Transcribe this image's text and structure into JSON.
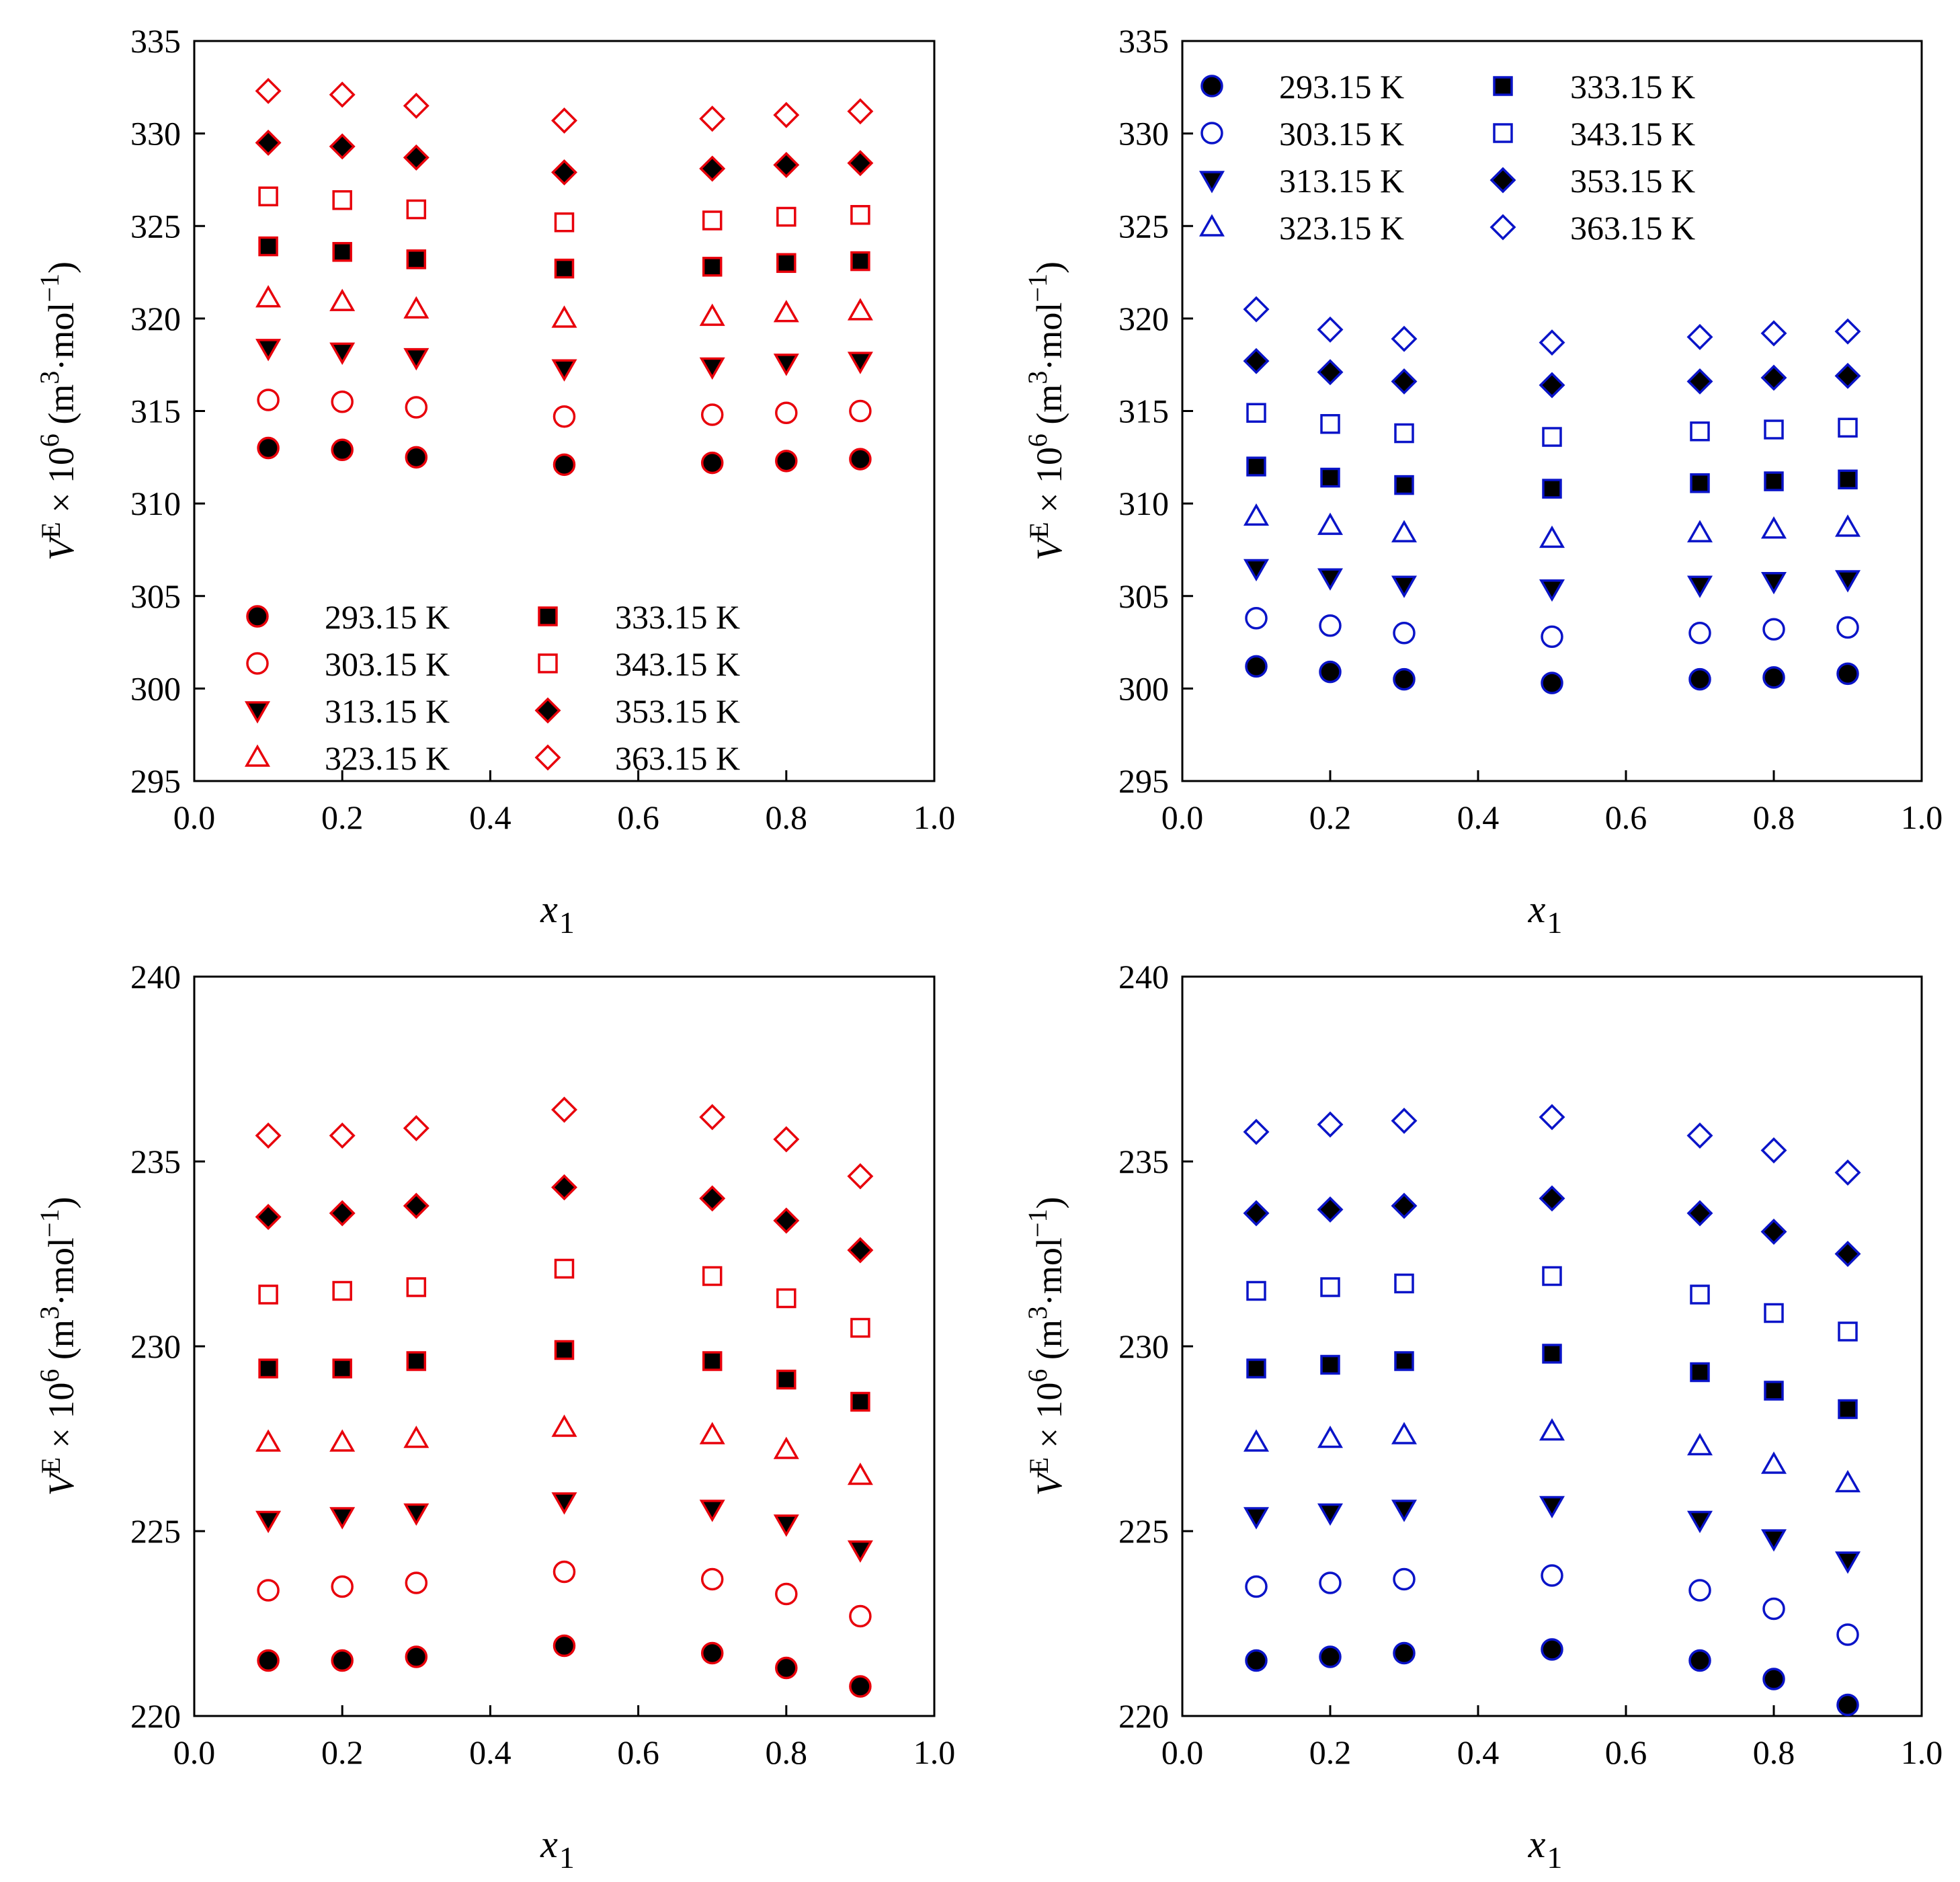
{
  "figure": {
    "colors": {
      "red": "#e8000b",
      "blue": "#0a14c8",
      "dark_fill": "#000000",
      "axis": "#000000"
    },
    "temperature_labels": [
      "293.15 K",
      "303.15 K",
      "313.15 K",
      "323.15 K",
      "333.15 K",
      "343.15 K",
      "353.15 K",
      "363.15 K"
    ],
    "marker_order": [
      "circle-filled",
      "circle-open",
      "triangle-down-filled",
      "triangle-up-open",
      "square-filled",
      "square-open",
      "diamond-filled",
      "diamond-open"
    ]
  },
  "chart_data": [
    {
      "id": "panel-top-left",
      "type": "scatter",
      "color": "red",
      "xlabel_main": "x",
      "xlabel_sub": "1",
      "ylabel": "VE × 10^6 (m^3·mol^-1)",
      "xlim": [
        0.0,
        1.0
      ],
      "ylim": [
        295,
        335
      ],
      "xticks": [
        "0.0",
        "0.2",
        "0.4",
        "0.6",
        "0.8",
        "1.0"
      ],
      "yticks": [
        "295",
        "300",
        "305",
        "310",
        "315",
        "320",
        "325",
        "330",
        "335"
      ],
      "legend": "lower-left",
      "x": [
        0.1,
        0.2,
        0.3,
        0.5,
        0.7,
        0.8,
        0.9
      ],
      "series": [
        {
          "name": "293.15 K",
          "marker": "circle-filled",
          "values": [
            313.0,
            312.9,
            312.5,
            312.1,
            312.2,
            312.3,
            312.4
          ]
        },
        {
          "name": "303.15 K",
          "marker": "circle-open",
          "values": [
            315.6,
            315.5,
            315.2,
            314.7,
            314.8,
            314.9,
            315.0
          ]
        },
        {
          "name": "313.15 K",
          "marker": "triangle-down-filled",
          "values": [
            318.4,
            318.2,
            317.9,
            317.3,
            317.4,
            317.6,
            317.7
          ]
        },
        {
          "name": "323.15 K",
          "marker": "triangle-up-open",
          "values": [
            321.1,
            320.9,
            320.5,
            320.0,
            320.1,
            320.3,
            320.4
          ]
        },
        {
          "name": "333.15 K",
          "marker": "square-filled",
          "values": [
            323.9,
            323.6,
            323.2,
            322.7,
            322.8,
            323.0,
            323.1
          ]
        },
        {
          "name": "343.15 K",
          "marker": "square-open",
          "values": [
            326.6,
            326.4,
            325.9,
            325.2,
            325.3,
            325.5,
            325.6
          ]
        },
        {
          "name": "353.15 K",
          "marker": "diamond-filled",
          "values": [
            329.5,
            329.3,
            328.7,
            327.9,
            328.1,
            328.3,
            328.4
          ]
        },
        {
          "name": "363.15 K",
          "marker": "diamond-open",
          "values": [
            332.3,
            332.1,
            331.5,
            330.7,
            330.8,
            331.0,
            331.2
          ]
        }
      ]
    },
    {
      "id": "panel-top-right",
      "type": "scatter",
      "color": "blue",
      "xlabel_main": "x",
      "xlabel_sub": "1",
      "ylabel": "VE × 10^6 (m^3·mol^-1)",
      "xlim": [
        0.0,
        1.0
      ],
      "ylim": [
        295,
        335
      ],
      "xticks": [
        "0.0",
        "0.2",
        "0.4",
        "0.6",
        "0.8",
        "1.0"
      ],
      "yticks": [
        "295",
        "300",
        "305",
        "310",
        "315",
        "320",
        "325",
        "330",
        "335"
      ],
      "legend": "top-left",
      "x": [
        0.1,
        0.2,
        0.3,
        0.5,
        0.7,
        0.8,
        0.9
      ],
      "series": [
        {
          "name": "293.15 K",
          "marker": "circle-filled",
          "values": [
            301.2,
            300.9,
            300.5,
            300.3,
            300.5,
            300.6,
            300.8
          ]
        },
        {
          "name": "303.15 K",
          "marker": "circle-open",
          "values": [
            303.8,
            303.4,
            303.0,
            302.8,
            303.0,
            303.2,
            303.3
          ]
        },
        {
          "name": "313.15 K",
          "marker": "triangle-down-filled",
          "values": [
            306.5,
            306.0,
            305.6,
            305.4,
            305.6,
            305.8,
            305.9
          ]
        },
        {
          "name": "323.15 K",
          "marker": "triangle-up-open",
          "values": [
            309.3,
            308.8,
            308.4,
            308.1,
            308.4,
            308.6,
            308.7
          ]
        },
        {
          "name": "333.15 K",
          "marker": "square-filled",
          "values": [
            312.0,
            311.4,
            311.0,
            310.8,
            311.1,
            311.2,
            311.3
          ]
        },
        {
          "name": "343.15 K",
          "marker": "square-open",
          "values": [
            314.9,
            314.3,
            313.8,
            313.6,
            313.9,
            314.0,
            314.1
          ]
        },
        {
          "name": "353.15 K",
          "marker": "diamond-filled",
          "values": [
            317.7,
            317.1,
            316.6,
            316.4,
            316.6,
            316.8,
            316.9
          ]
        },
        {
          "name": "363.15 K",
          "marker": "diamond-open",
          "values": [
            320.5,
            319.4,
            318.9,
            318.7,
            319.0,
            319.2,
            319.3
          ]
        }
      ]
    },
    {
      "id": "panel-bottom-left",
      "type": "scatter",
      "color": "red",
      "xlabel_main": "x",
      "xlabel_sub": "1",
      "ylabel": "VE × 10^6 (m^3·mol^-1)",
      "xlim": [
        0.0,
        1.0
      ],
      "ylim": [
        220,
        240
      ],
      "xticks": [
        "0.0",
        "0.2",
        "0.4",
        "0.6",
        "0.8",
        "1.0"
      ],
      "yticks": [
        "220",
        "225",
        "230",
        "235",
        "240"
      ],
      "legend": "none",
      "x": [
        0.1,
        0.2,
        0.3,
        0.5,
        0.7,
        0.8,
        0.9
      ],
      "series": [
        {
          "name": "293.15 K",
          "marker": "circle-filled",
          "values": [
            221.5,
            221.5,
            221.6,
            221.9,
            221.7,
            221.3,
            220.8
          ]
        },
        {
          "name": "303.15 K",
          "marker": "circle-open",
          "values": [
            223.4,
            223.5,
            223.6,
            223.9,
            223.7,
            223.3,
            222.7
          ]
        },
        {
          "name": "313.15 K",
          "marker": "triangle-down-filled",
          "values": [
            225.3,
            225.4,
            225.5,
            225.8,
            225.6,
            225.2,
            224.5
          ]
        },
        {
          "name": "323.15 K",
          "marker": "triangle-up-open",
          "values": [
            227.4,
            227.4,
            227.5,
            227.8,
            227.6,
            227.2,
            226.5
          ]
        },
        {
          "name": "333.15 K",
          "marker": "square-filled",
          "values": [
            229.4,
            229.4,
            229.6,
            229.9,
            229.6,
            229.1,
            228.5
          ]
        },
        {
          "name": "343.15 K",
          "marker": "square-open",
          "values": [
            231.4,
            231.5,
            231.6,
            232.1,
            231.9,
            231.3,
            230.5
          ]
        },
        {
          "name": "353.15 K",
          "marker": "diamond-filled",
          "values": [
            233.5,
            233.6,
            233.8,
            234.3,
            234.0,
            233.4,
            232.6
          ]
        },
        {
          "name": "363.15 K",
          "marker": "diamond-open",
          "values": [
            235.7,
            235.7,
            235.9,
            236.4,
            236.2,
            235.6,
            234.6
          ]
        }
      ]
    },
    {
      "id": "panel-bottom-right",
      "type": "scatter",
      "color": "blue",
      "xlabel_main": "x",
      "xlabel_sub": "1",
      "ylabel": "VE × 10^6 (m^3·mol^-1)",
      "xlim": [
        0.0,
        1.0
      ],
      "ylim": [
        220,
        240
      ],
      "xticks": [
        "0.0",
        "0.2",
        "0.4",
        "0.6",
        "0.8",
        "1.0"
      ],
      "yticks": [
        "220",
        "225",
        "230",
        "235",
        "240"
      ],
      "legend": "none",
      "x": [
        0.1,
        0.2,
        0.3,
        0.5,
        0.7,
        0.8,
        0.9
      ],
      "series": [
        {
          "name": "293.15 K",
          "marker": "circle-filled",
          "values": [
            221.5,
            221.6,
            221.7,
            221.8,
            221.5,
            221.0,
            220.3
          ]
        },
        {
          "name": "303.15 K",
          "marker": "circle-open",
          "values": [
            223.5,
            223.6,
            223.7,
            223.8,
            223.4,
            222.9,
            222.2
          ]
        },
        {
          "name": "313.15 K",
          "marker": "triangle-down-filled",
          "values": [
            225.4,
            225.5,
            225.6,
            225.7,
            225.3,
            224.8,
            224.2
          ]
        },
        {
          "name": "323.15 K",
          "marker": "triangle-up-open",
          "values": [
            227.4,
            227.5,
            227.6,
            227.7,
            227.3,
            226.8,
            226.3
          ]
        },
        {
          "name": "333.15 K",
          "marker": "square-filled",
          "values": [
            229.4,
            229.5,
            229.6,
            229.8,
            229.3,
            228.8,
            228.3
          ]
        },
        {
          "name": "343.15 K",
          "marker": "square-open",
          "values": [
            231.5,
            231.6,
            231.7,
            231.9,
            231.4,
            230.9,
            230.4
          ]
        },
        {
          "name": "353.15 K",
          "marker": "diamond-filled",
          "values": [
            233.6,
            233.7,
            233.8,
            234.0,
            233.6,
            233.1,
            232.5
          ]
        },
        {
          "name": "363.15 K",
          "marker": "diamond-open",
          "values": [
            235.8,
            236.0,
            236.1,
            236.2,
            235.7,
            235.3,
            234.7
          ]
        }
      ]
    }
  ]
}
